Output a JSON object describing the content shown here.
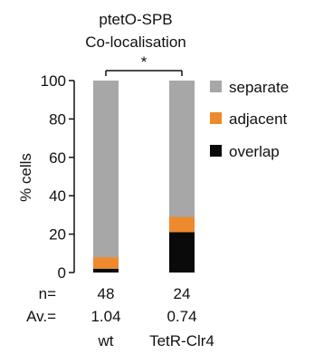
{
  "chart_data": {
    "type": "bar",
    "stacked": true,
    "title": "ptetO-SPB Co-localisation",
    "title_lines": [
      "ptetO-SPB",
      "Co-localisation"
    ],
    "ylabel": "% cells",
    "ylim": [
      0,
      100
    ],
    "yticks": [
      0,
      20,
      40,
      60,
      80,
      100
    ],
    "categories": [
      "wt",
      "TetR-Clr4"
    ],
    "series": [
      {
        "name": "overlap",
        "color": "#0a0a0a",
        "values": [
          2,
          21
        ]
      },
      {
        "name": "adjacent",
        "color": "#ee8a2e",
        "values": [
          6,
          8
        ]
      },
      {
        "name": "separate",
        "color": "#a7a7a7",
        "values": [
          92,
          71
        ]
      }
    ],
    "legend_order": [
      "separate",
      "adjacent",
      "overlap"
    ],
    "legend_position": "right",
    "significance": {
      "label": "*",
      "between": [
        "wt",
        "TetR-Clr4"
      ]
    },
    "footer_rows": [
      {
        "label": "n=",
        "values": [
          "48",
          "24"
        ]
      },
      {
        "label": "Av.=",
        "values": [
          "1.04",
          "0.74"
        ]
      }
    ],
    "grid": false
  }
}
